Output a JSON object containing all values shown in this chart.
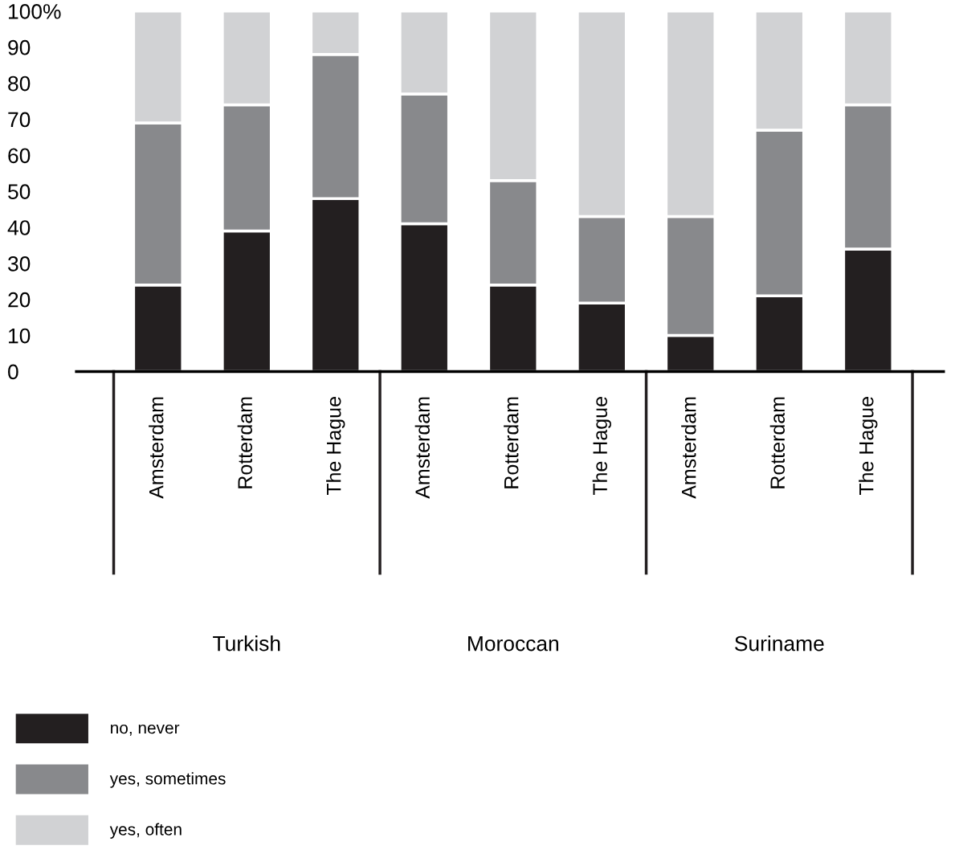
{
  "chart_data": {
    "type": "bar",
    "stacked": true,
    "categories": [
      "Amsterdam",
      "Rotterdam",
      "The Hague",
      "Amsterdam",
      "Rotterdam",
      "The Hague",
      "Amsterdam",
      "Rotterdam",
      "The Hague"
    ],
    "series": [
      {
        "name": "no, never",
        "color": "#231f20",
        "values": [
          24,
          39,
          48,
          41,
          24,
          19,
          10,
          21,
          34
        ]
      },
      {
        "name": "yes, sometimes",
        "color": "#88898c",
        "values": [
          45,
          35,
          40,
          36,
          29,
          24,
          33,
          46,
          40
        ]
      },
      {
        "name": "yes, often",
        "color": "#d1d2d4",
        "values": [
          31,
          26,
          12,
          23,
          47,
          57,
          57,
          33,
          26
        ]
      }
    ],
    "annotations": [
      "Turkish",
      "Moroccan",
      "Suriname"
    ],
    "ylim": [
      0,
      100
    ],
    "yticks": [
      0,
      10,
      20,
      30,
      40,
      50,
      60,
      70,
      80,
      90,
      {
        "value": 100,
        "label": "100%"
      }
    ],
    "grid": false,
    "legend": "bottom left"
  }
}
